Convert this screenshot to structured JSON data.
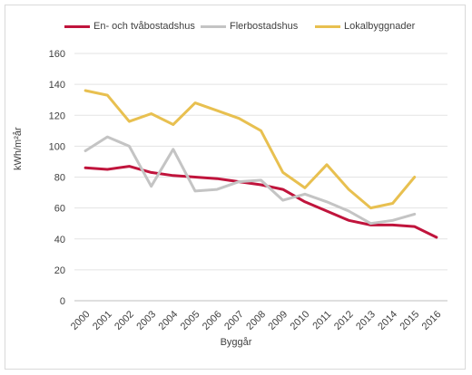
{
  "chart_data": {
    "type": "line",
    "title": "",
    "xlabel": "Byggår",
    "ylabel": "kWh/m²år",
    "x": [
      "2000",
      "2001",
      "2002",
      "2003",
      "2004",
      "2005",
      "2006",
      "2007",
      "2008",
      "2009",
      "2010",
      "2011",
      "2012",
      "2013",
      "2014",
      "2015",
      "2016"
    ],
    "ylim": [
      0,
      160
    ],
    "yticks": [
      0,
      20,
      40,
      60,
      80,
      100,
      120,
      140,
      160
    ],
    "grid": true,
    "legend_position": "top",
    "series": [
      {
        "name": "En- och tvåbostadshus",
        "color": "#c0143c",
        "values": [
          86,
          85,
          87,
          83,
          81,
          80,
          79,
          77,
          75,
          72,
          64,
          58,
          52,
          49,
          49,
          48,
          41
        ]
      },
      {
        "name": "Flerbostadshus",
        "color": "#c4c4c4",
        "values": [
          97,
          106,
          100,
          74,
          98,
          71,
          72,
          77,
          78,
          65,
          69,
          64,
          58,
          50,
          52,
          56,
          null
        ]
      },
      {
        "name": "Lokalbyggnader",
        "color": "#e8c050",
        "values": [
          136,
          133,
          116,
          121,
          114,
          128,
          123,
          118,
          110,
          83,
          73,
          88,
          72,
          60,
          63,
          80,
          null
        ]
      }
    ]
  }
}
